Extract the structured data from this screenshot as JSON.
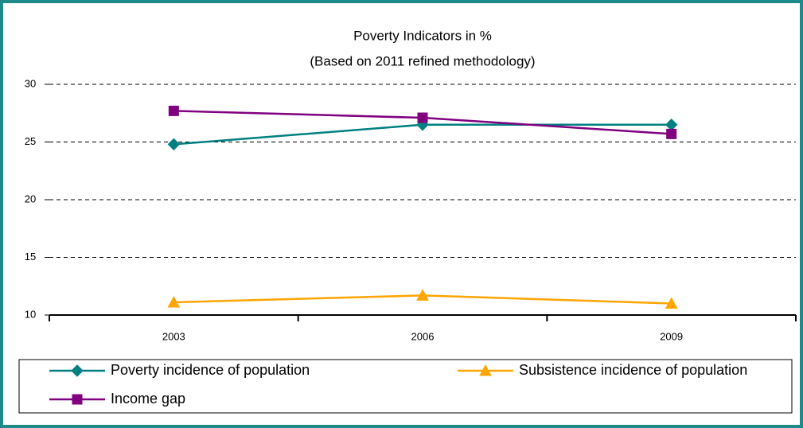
{
  "chart_data": {
    "type": "line",
    "title": "Poverty Indicators in %",
    "subtitle": "(Based on 2011 refined methodology)",
    "categories": [
      "2003",
      "2006",
      "2009"
    ],
    "series": [
      {
        "name": "Poverty incidence of population",
        "color": "#008080",
        "marker": "diamond",
        "values": [
          24.8,
          26.5,
          26.5
        ]
      },
      {
        "name": "Subsistence incidence of population",
        "color": "#ffa500",
        "marker": "triangle",
        "values": [
          11.1,
          11.7,
          11.0
        ]
      },
      {
        "name": "Income gap",
        "color": "#800080",
        "marker": "square",
        "values": [
          27.7,
          27.1,
          25.7
        ]
      }
    ],
    "ylim": [
      10,
      30
    ],
    "yticks": [
      10,
      15,
      20,
      25,
      30
    ],
    "grid": true
  }
}
